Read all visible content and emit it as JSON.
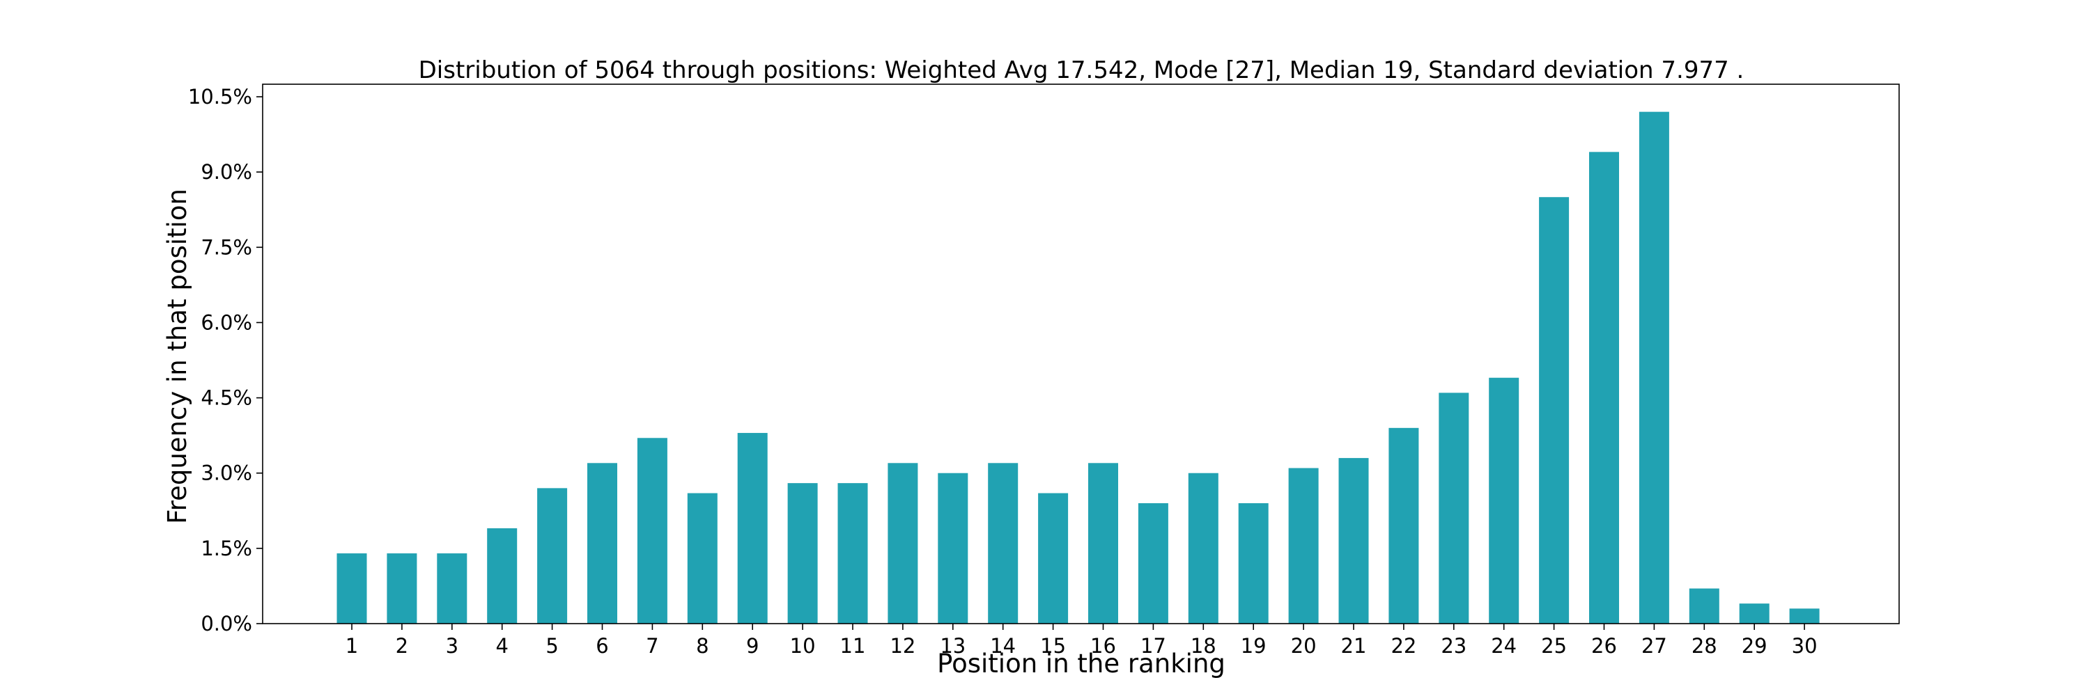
{
  "chart_data": {
    "type": "bar",
    "title": "Distribution of 5064 through positions: Weighted Avg 17.542, Mode [27], Median 19, Standard deviation 7.977 .",
    "xlabel": "Position in the ranking",
    "ylabel": "Frequency in that position",
    "categories": [
      "1",
      "2",
      "3",
      "4",
      "5",
      "6",
      "7",
      "8",
      "9",
      "10",
      "11",
      "12",
      "13",
      "14",
      "15",
      "16",
      "17",
      "18",
      "19",
      "20",
      "21",
      "22",
      "23",
      "24",
      "25",
      "26",
      "27",
      "28",
      "29",
      "30"
    ],
    "values": [
      1.4,
      1.4,
      1.4,
      1.9,
      2.7,
      3.2,
      3.7,
      2.6,
      3.8,
      2.8,
      2.8,
      3.2,
      3.0,
      3.2,
      2.6,
      3.2,
      2.4,
      3.0,
      2.4,
      3.1,
      3.3,
      3.9,
      4.6,
      4.9,
      8.5,
      9.4,
      10.2,
      0.7,
      0.4,
      0.3
    ],
    "value_unit": "%",
    "ylim": [
      0,
      10.75
    ],
    "yticks": [
      0,
      1.5,
      3,
      4.5,
      6,
      7.5,
      9,
      10.5
    ],
    "ytick_labels": [
      "0.0%",
      "1.5%",
      "3.0%",
      "4.5%",
      "6.0%",
      "7.5%",
      "9.0%",
      "10.5%"
    ],
    "bar_color": "#21a2b2",
    "grid": false,
    "legend": "none"
  }
}
